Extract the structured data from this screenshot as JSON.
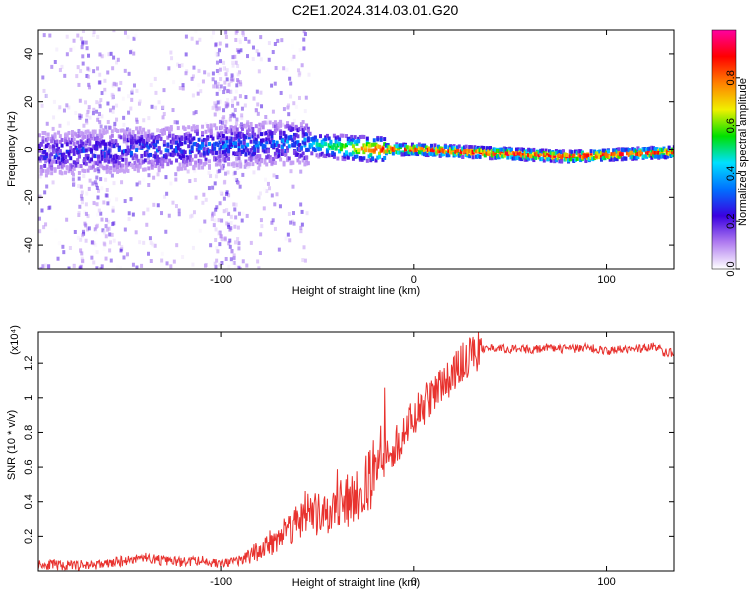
{
  "title": "C2E1.2024.314.03.01.G20",
  "chart_data": [
    {
      "type": "heatmap",
      "xlabel": "Height of straight line (km)",
      "ylabel": "Frequency (Hz)",
      "xlim": [
        -195,
        135
      ],
      "ylim": [
        -50,
        50
      ],
      "xticks": [
        -100,
        0,
        100
      ],
      "yticks": [
        40,
        20,
        0,
        -20,
        -40
      ],
      "colorbar": {
        "label": "Normalized spectral amplitude",
        "range": [
          0,
          1
        ],
        "ticks": [
          "0.0",
          "0.2",
          "0.4",
          "0.6",
          "0.8"
        ],
        "colors": [
          "#ffffff",
          "#b07cf0",
          "#3a00e0",
          "#0070ff",
          "#00e0ff",
          "#00e000",
          "#f0f000",
          "#ff8000",
          "#ff0000",
          "#ff00a0"
        ]
      },
      "ridge": {
        "description_points_x": [
          -195,
          -60,
          -40,
          -20,
          0,
          80,
          135
        ],
        "center_freq": [
          -2,
          3,
          1,
          0,
          0,
          -3,
          -1
        ],
        "peak_amplitude": [
          0.3,
          0.4,
          0.6,
          0.9,
          0.9,
          0.95,
          0.9
        ]
      }
    },
    {
      "type": "line",
      "xlabel": "Height of straight line (km)",
      "ylabel": "SNR (10 * v/v)",
      "yscale_label": "(x10⁴)",
      "xlim": [
        -195,
        135
      ],
      "ylim": [
        0,
        1.38
      ],
      "xticks": [
        -100,
        0,
        100
      ],
      "yticks": [
        0.2,
        0.4,
        0.6,
        0.8,
        1.0,
        1.2
      ],
      "series": [
        {
          "color": "#e8322e",
          "x": [
            -195,
            -180,
            -160,
            -150,
            -140,
            -130,
            -120,
            -110,
            -100,
            -90,
            -80,
            -70,
            -60,
            -55,
            -50,
            -45,
            -40,
            -35,
            -30,
            -25,
            -20,
            -15,
            -10,
            -5,
            0,
            5,
            10,
            15,
            20,
            25,
            30,
            35,
            40,
            50,
            60,
            70,
            80,
            90,
            100,
            110,
            120,
            125,
            130,
            135
          ],
          "y": [
            0.04,
            0.03,
            0.04,
            0.06,
            0.08,
            0.06,
            0.05,
            0.06,
            0.04,
            0.06,
            0.12,
            0.2,
            0.3,
            0.35,
            0.32,
            0.3,
            0.38,
            0.4,
            0.42,
            0.5,
            0.6,
            0.65,
            0.72,
            0.8,
            0.88,
            0.95,
            1.02,
            1.08,
            1.14,
            1.2,
            1.25,
            1.28,
            1.29,
            1.28,
            1.28,
            1.29,
            1.28,
            1.29,
            1.27,
            1.28,
            1.29,
            1.3,
            1.26,
            1.26
          ]
        }
      ]
    }
  ]
}
